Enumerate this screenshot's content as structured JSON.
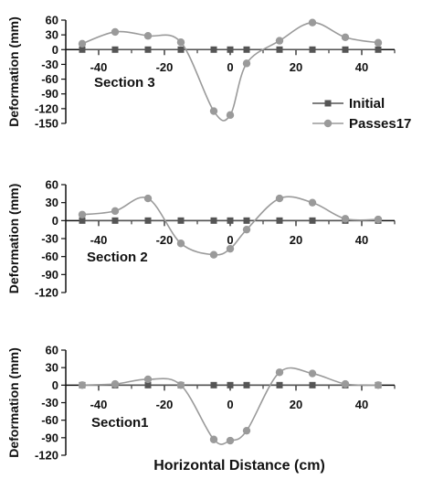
{
  "figure": {
    "x_label": "Horizontal Distance (cm)",
    "legend": {
      "initial": "Initial",
      "passes": "Passes17"
    },
    "colors": {
      "initial": "#555555",
      "passes": "#9a9a9a",
      "axis": "#111111"
    }
  },
  "chart_data": [
    {
      "type": "line",
      "section_label": "Section 3",
      "ylabel": "Deformation (mm)",
      "xlim": [
        -50,
        50
      ],
      "ylim": [
        -150,
        60
      ],
      "x_ticks": [
        "-40",
        "-20",
        "0",
        "20",
        "40"
      ],
      "y_ticks": [
        "60",
        "30",
        "0",
        "-30",
        "-60",
        "-90",
        "-120",
        "-150"
      ],
      "legend_position": "right",
      "series": [
        {
          "name": "Initial",
          "x": [
            -45,
            -35,
            -25,
            -15,
            -5,
            0,
            5,
            15,
            25,
            35,
            45
          ],
          "y": [
            0,
            0,
            0,
            0,
            0,
            0,
            0,
            0,
            0,
            0,
            0
          ]
        },
        {
          "name": "Passes17",
          "x": [
            -45,
            -35,
            -25,
            -15,
            -5,
            0,
            5,
            15,
            25,
            35,
            45
          ],
          "y": [
            12,
            36,
            28,
            15,
            -125,
            -133,
            -28,
            18,
            55,
            25,
            14
          ]
        }
      ]
    },
    {
      "type": "line",
      "section_label": "Section 2",
      "ylabel": "Deformation (mm)",
      "xlim": [
        -50,
        50
      ],
      "ylim": [
        -120,
        60
      ],
      "x_ticks": [
        "-40",
        "-20",
        "0",
        "20",
        "40"
      ],
      "y_ticks": [
        "60",
        "30",
        "0",
        "-30",
        "-60",
        "-90",
        "-120"
      ],
      "series": [
        {
          "name": "Initial",
          "x": [
            -45,
            -35,
            -25,
            -15,
            -5,
            0,
            5,
            15,
            25,
            35,
            45
          ],
          "y": [
            0,
            0,
            0,
            0,
            0,
            0,
            0,
            0,
            0,
            0,
            0
          ]
        },
        {
          "name": "Passes17",
          "x": [
            -45,
            -35,
            -25,
            -15,
            -5,
            0,
            5,
            15,
            25,
            35,
            45
          ],
          "y": [
            10,
            16,
            37,
            -38,
            -57,
            -47,
            -15,
            37,
            30,
            3,
            2
          ]
        }
      ]
    },
    {
      "type": "line",
      "section_label": "Section1",
      "ylabel": "Deformation (mm)",
      "xlim": [
        -50,
        50
      ],
      "ylim": [
        -120,
        60
      ],
      "x_ticks": [
        "-40",
        "-20",
        "0",
        "20",
        "40"
      ],
      "y_ticks": [
        "60",
        "30",
        "0",
        "-30",
        "-60",
        "-90",
        "-120"
      ],
      "series": [
        {
          "name": "Initial",
          "x": [
            -45,
            -35,
            -25,
            -15,
            -5,
            0,
            5,
            15,
            25,
            35,
            45
          ],
          "y": [
            0,
            0,
            0,
            0,
            0,
            0,
            0,
            0,
            0,
            0,
            0
          ]
        },
        {
          "name": "Passes17",
          "x": [
            -45,
            -35,
            -25,
            -15,
            -5,
            0,
            5,
            15,
            25,
            35,
            45
          ],
          "y": [
            0,
            2,
            10,
            0,
            -93,
            -95,
            -78,
            22,
            20,
            2,
            0
          ]
        }
      ]
    }
  ]
}
